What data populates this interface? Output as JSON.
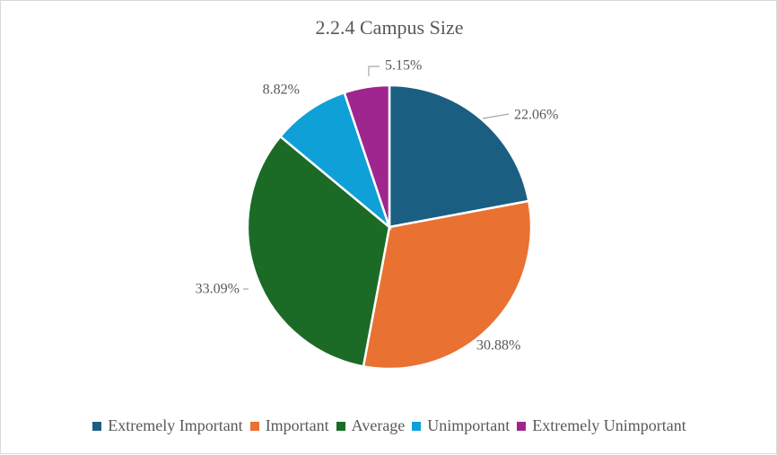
{
  "chart_data": {
    "type": "pie",
    "title": "2.2.4 Campus Size",
    "categories": [
      "Extremely Important",
      "Important",
      "Average",
      "Unimportant",
      "Extremely Unimportant"
    ],
    "values": [
      22.06,
      30.88,
      33.09,
      8.82,
      5.15
    ],
    "labels": [
      "22.06%",
      "30.88%",
      "33.09%",
      "8.82%",
      "5.15%"
    ],
    "colors": [
      "#1a5f82",
      "#e97131",
      "#1b6b27",
      "#10a0d8",
      "#a0268f"
    ],
    "legend": "bottom"
  }
}
